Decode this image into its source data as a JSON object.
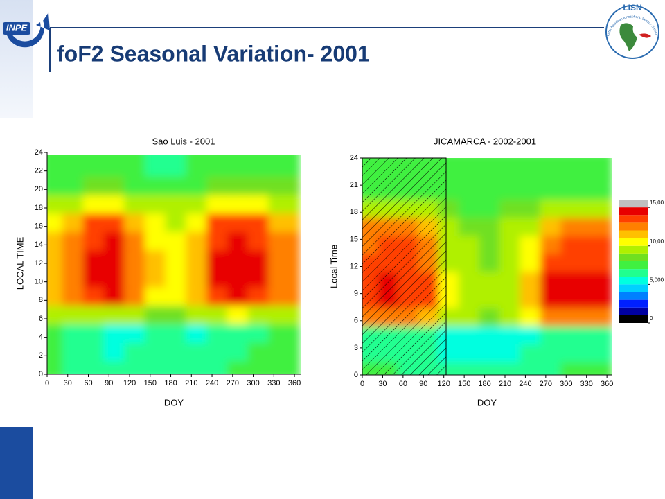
{
  "header": {
    "title": "foF2 Seasonal Variation- 2001",
    "logo_left": "INPE",
    "logo_right": "LISN",
    "logo_right_caption": "Latin American Ionospheric Sensor Network"
  },
  "colorbar": {
    "zlim": [
      0,
      16
    ],
    "colors": [
      "#000000",
      "#0000a0",
      "#0020ff",
      "#0080ff",
      "#00d0ff",
      "#00ffe0",
      "#20ff90",
      "#40f040",
      "#70e020",
      "#b0f000",
      "#ffff00",
      "#ffc000",
      "#ff8000",
      "#ff4000",
      "#e80000",
      "#c0c0c0"
    ],
    "ticks": [
      {
        "value": 15,
        "label": "15,00"
      },
      {
        "value": 10,
        "label": "10,00"
      },
      {
        "value": 5,
        "label": "5,000"
      },
      0
    ]
  },
  "chart_data": [
    {
      "type": "heatmap",
      "title": "Sao Luis - 2001",
      "x_label": "DOY",
      "y_label": "LOCAL TIME",
      "xlim": [
        0,
        369
      ],
      "ylim": [
        0,
        24
      ],
      "xticks": [
        0,
        30,
        60,
        90,
        120,
        150,
        180,
        210,
        240,
        270,
        300,
        330,
        360
      ],
      "yticks": [
        0,
        2,
        4,
        6,
        8,
        10,
        12,
        14,
        16,
        18,
        20,
        22,
        24
      ],
      "xbins": [
        0,
        30,
        60,
        90,
        120,
        150,
        180,
        210,
        240,
        270,
        300,
        330,
        360
      ],
      "ybins": [
        0,
        2,
        4,
        6,
        8,
        10,
        12,
        14,
        16,
        18,
        20,
        22,
        24
      ],
      "z": [
        [
          7,
          6.5,
          6.5,
          6,
          6,
          6,
          6,
          6.5,
          6.5,
          7,
          7,
          7
        ],
        [
          7,
          6.5,
          6,
          5.5,
          6,
          6,
          6,
          6,
          6,
          6.5,
          7,
          7
        ],
        [
          7,
          6.5,
          6,
          5.5,
          5.5,
          6,
          6,
          5.5,
          6,
          6,
          6.5,
          7
        ],
        [
          9,
          9,
          9.5,
          9.5,
          9,
          8.5,
          8.5,
          9,
          9.5,
          10,
          9.5,
          9
        ],
        [
          11,
          12,
          13.5,
          14,
          12,
          10.5,
          10,
          11,
          13.5,
          14,
          13.5,
          12
        ],
        [
          11,
          12.5,
          14,
          14.5,
          12.5,
          11,
          10.5,
          11.5,
          14,
          14.5,
          14,
          12.5
        ],
        [
          11,
          12.5,
          14,
          14.5,
          12.5,
          11,
          10.5,
          11.5,
          14,
          14.5,
          14,
          12.5
        ],
        [
          11,
          12,
          13.5,
          14,
          12,
          10.5,
          10,
          11,
          13.5,
          14,
          13.5,
          12
        ],
        [
          10.5,
          11.5,
          13,
          13,
          11,
          10,
          9.5,
          10.5,
          13,
          13.5,
          13,
          11.5
        ],
        [
          9,
          9.5,
          10,
          10,
          9.5,
          9,
          9,
          9,
          10,
          10,
          10,
          9.5
        ],
        [
          7.5,
          7.5,
          8,
          8,
          7.5,
          7,
          7,
          7.5,
          8,
          8,
          8,
          8
        ],
        [
          7,
          7,
          7,
          7,
          7,
          6.5,
          6.5,
          7,
          7,
          7.5,
          7.5,
          7.5
        ]
      ]
    },
    {
      "type": "heatmap",
      "title": "JICAMARCA - 2002-2001",
      "x_label": "DOY",
      "y_label": "Local Time",
      "xlim": [
        0,
        367
      ],
      "ylim": [
        0,
        24
      ],
      "xticks": [
        0,
        30,
        60,
        90,
        120,
        150,
        180,
        210,
        240,
        270,
        300,
        330,
        360
      ],
      "yticks": [
        0,
        3,
        6,
        9,
        12,
        15,
        18,
        21,
        24
      ],
      "xbins": [
        0,
        30,
        60,
        90,
        120,
        150,
        180,
        210,
        240,
        270,
        300,
        330,
        360
      ],
      "ybins": [
        0,
        2,
        4,
        6,
        8,
        10,
        12,
        14,
        16,
        18,
        20,
        22,
        24
      ],
      "z": [
        [
          7,
          7,
          6.5,
          6.5,
          6,
          6,
          6,
          6,
          6.5,
          6.5,
          7,
          7
        ],
        [
          6.5,
          6.5,
          6,
          6,
          5.5,
          5.5,
          5.5,
          5.5,
          6,
          6,
          6.5,
          6.5
        ],
        [
          6.5,
          6,
          6,
          6,
          5.5,
          5.5,
          5.5,
          5.5,
          5.5,
          6,
          6,
          6.5
        ],
        [
          12,
          12.5,
          12,
          11.5,
          9.5,
          9,
          8.5,
          9,
          10,
          12,
          12.5,
          12
        ],
        [
          13.5,
          14,
          13.5,
          13,
          10,
          9.5,
          9,
          9.5,
          11,
          14,
          14.5,
          14
        ],
        [
          13.5,
          14,
          13.5,
          13,
          10,
          9.5,
          9,
          9.5,
          11,
          14,
          14.5,
          14
        ],
        [
          13,
          13.5,
          13.5,
          12.5,
          9.5,
          9,
          8.5,
          9,
          10.5,
          13,
          13.5,
          13.5
        ],
        [
          12.5,
          13,
          13,
          12,
          9.5,
          9,
          8.5,
          9,
          10,
          12.5,
          13,
          13
        ],
        [
          12,
          12.5,
          12.5,
          11.5,
          9,
          8.5,
          8.5,
          9,
          9.5,
          11.5,
          12.5,
          12.5
        ],
        [
          9.5,
          9.5,
          9,
          9,
          8,
          7.5,
          7.5,
          8,
          8.5,
          9,
          9.5,
          9.5
        ],
        [
          7.5,
          7.5,
          7.5,
          7.5,
          7,
          7,
          7,
          7,
          7.5,
          7.5,
          7.5,
          7.5
        ],
        [
          7,
          7,
          7,
          7,
          7,
          7,
          7,
          7,
          7,
          7,
          7,
          7
        ]
      ]
    }
  ]
}
